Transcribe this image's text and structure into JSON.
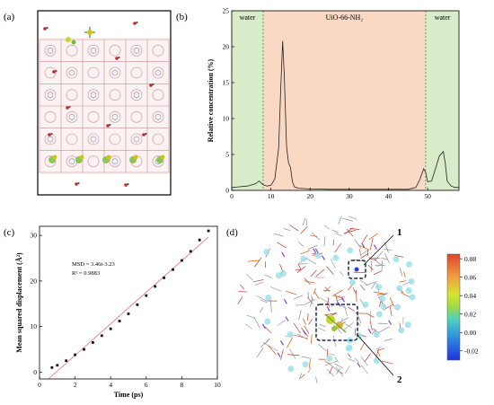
{
  "panels": {
    "a": {
      "label": "(a)"
    },
    "b": {
      "label": "(b)"
    },
    "c": {
      "label": "(c)"
    },
    "d": {
      "label": "(d)"
    }
  },
  "panel_b_regions": {
    "left": "water",
    "middle": "UiO-66-NH₂",
    "right": "water",
    "colors": {
      "water": "#d9ecc9",
      "uio": "#f9d8c4"
    },
    "boundaries_A": [
      8,
      49.5
    ]
  },
  "panel_d_annotations": [
    "1",
    "2"
  ],
  "colorbar": {
    "ticks": [
      "0.08",
      "0.06",
      "0.04",
      "0.02",
      "0.00",
      "-0.02"
    ],
    "range": [
      -0.03,
      0.085
    ]
  },
  "chart_data": [
    {
      "type": "line",
      "title": "",
      "xlabel": "",
      "ylabel": "Relative concentration (%)",
      "xlim": [
        0,
        58
      ],
      "ylim": [
        0,
        25
      ],
      "xticks": [
        "0",
        "10",
        "20",
        "30",
        "40",
        "50"
      ],
      "yticks": [
        "0",
        "5",
        "10",
        "15",
        "20",
        "25"
      ],
      "x": [
        0,
        2,
        4,
        6,
        7,
        8,
        9,
        10,
        11,
        12,
        12.5,
        13,
        13.4,
        14,
        14.5,
        15,
        15.5,
        16,
        17,
        20,
        25,
        30,
        35,
        40,
        45,
        47,
        48,
        49,
        49.5,
        50,
        51,
        52,
        53,
        54,
        54.5,
        55,
        56,
        57,
        58
      ],
      "y": [
        0.4,
        0.5,
        0.6,
        0.9,
        1.3,
        0.8,
        0.6,
        0.7,
        1.6,
        6,
        14,
        20.8,
        16,
        6,
        3.8,
        3.2,
        1.2,
        0.5,
        0.3,
        0.2,
        0.15,
        0.15,
        0.15,
        0.15,
        0.15,
        0.4,
        1.5,
        3,
        2.5,
        1.2,
        1.3,
        3,
        4.8,
        5.4,
        3.8,
        1.3,
        0.6,
        0.4,
        0.4
      ]
    },
    {
      "type": "scatter",
      "title": "",
      "xlabel": "Time (ps)",
      "ylabel": "Mean squared displacement (Å²)",
      "xlim": [
        0,
        10
      ],
      "ylim": [
        -1.5,
        32
      ],
      "xticks": [
        "0",
        "2",
        "4",
        "6",
        "8",
        "10"
      ],
      "yticks": [
        "0",
        "10",
        "20",
        "30"
      ],
      "annotations": [
        "MSD = 3.46t-3.23",
        "R² = 0.9883"
      ],
      "fit_line": {
        "slope": 3.46,
        "intercept": -3.23
      },
      "x": [
        0.7,
        1.0,
        1.5,
        2.0,
        2.5,
        3.0,
        3.5,
        4.0,
        4.5,
        5.0,
        5.5,
        6.0,
        6.5,
        7.0,
        7.5,
        8.0,
        8.5,
        9.0,
        9.5
      ],
      "y": [
        1.0,
        1.5,
        2.5,
        3.8,
        5.0,
        6.5,
        8.0,
        9.5,
        11.2,
        12.8,
        14.8,
        16.8,
        18.8,
        20.7,
        22.5,
        24.5,
        26.5,
        29.0,
        31.0
      ]
    }
  ]
}
